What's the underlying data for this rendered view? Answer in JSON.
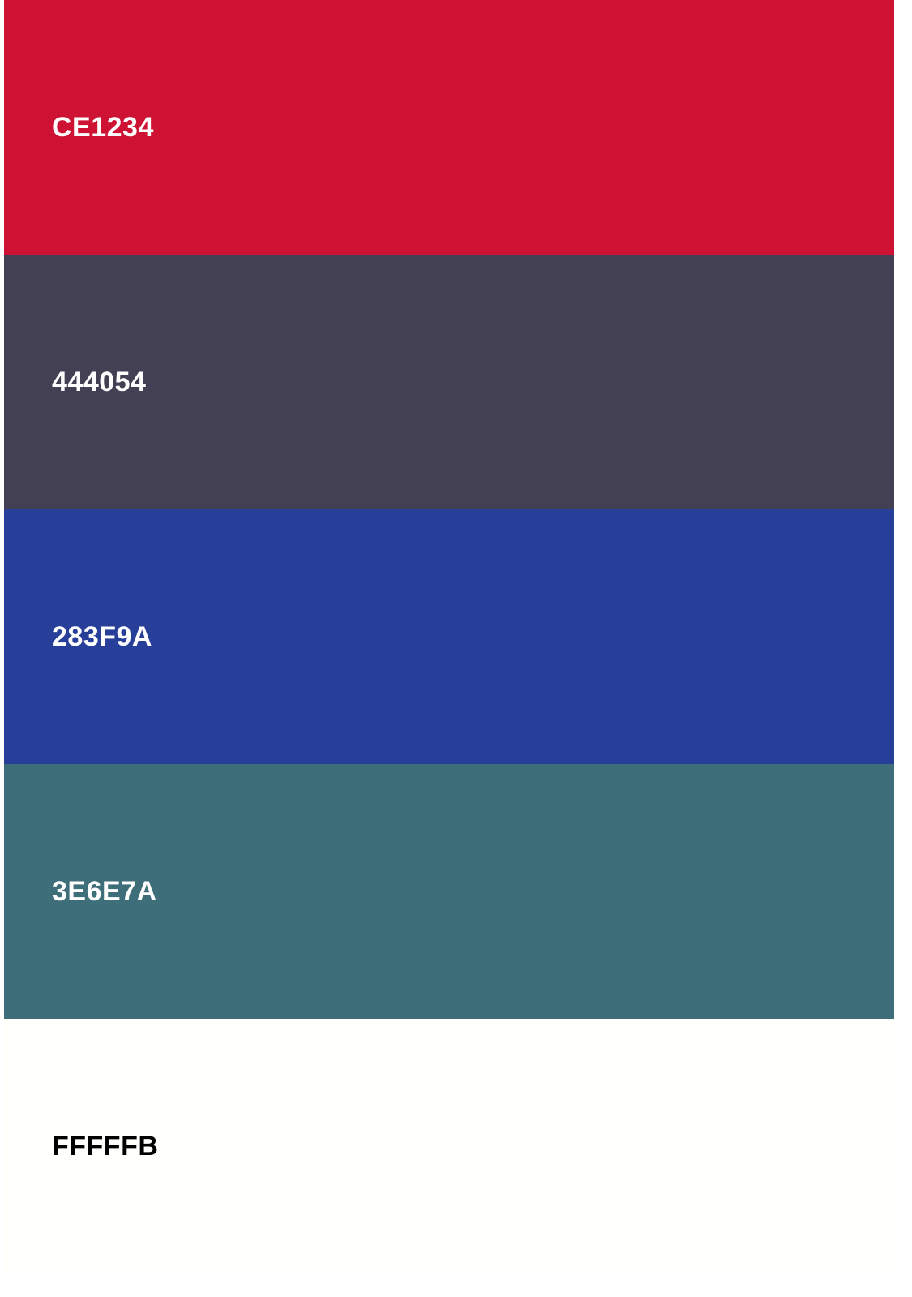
{
  "palette": {
    "swatches": [
      {
        "label": "CE1234",
        "color": "#CE1234",
        "text_color": "#FFFFFF"
      },
      {
        "label": "444054",
        "color": "#444054",
        "text_color": "#FFFFFF"
      },
      {
        "label": "283F9A",
        "color": "#283F9A",
        "text_color": "#FFFFFF"
      },
      {
        "label": "3E6E7A",
        "color": "#3E6E7A",
        "text_color": "#FFFFFF"
      },
      {
        "label": "FFFFFB",
        "color": "#FFFFFB",
        "text_color": "#000000"
      }
    ]
  }
}
